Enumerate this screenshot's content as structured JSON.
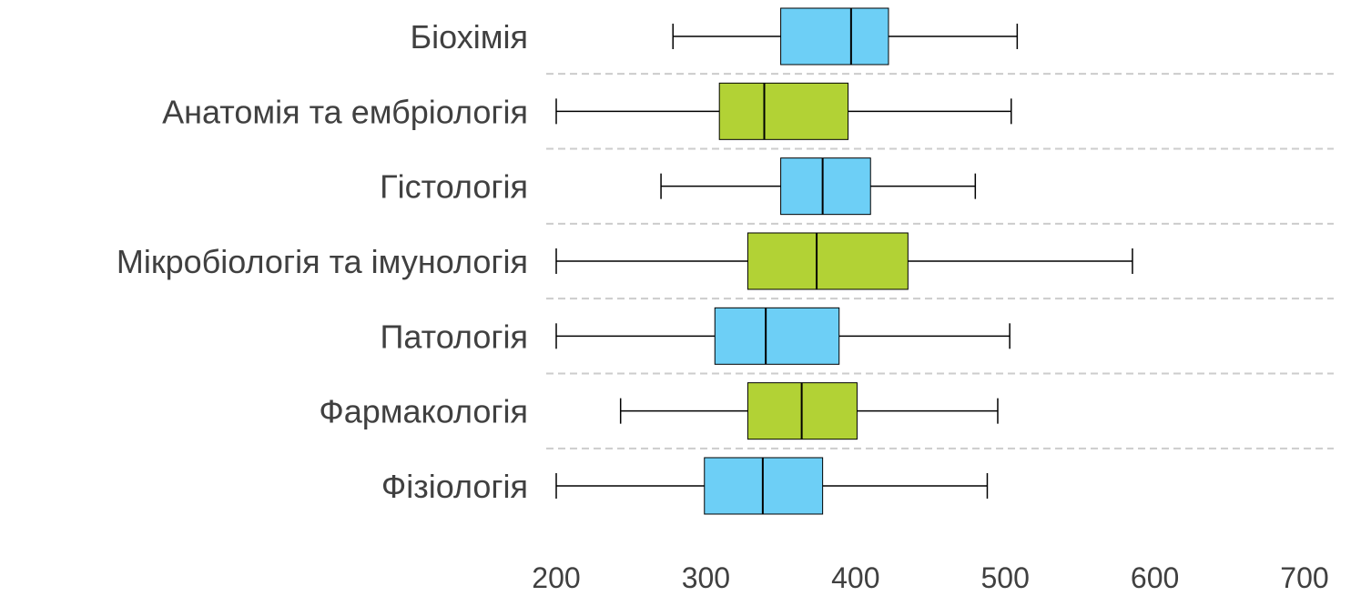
{
  "chart_data": {
    "type": "boxplot",
    "title": "",
    "xlabel": "",
    "ylabel": "",
    "xlim": [
      200,
      700
    ],
    "x_ticks": [
      200,
      300,
      400,
      500,
      600,
      700
    ],
    "grid": "dashed horizontal separators between categories",
    "colors": {
      "blue": "#6dcff6",
      "green": "#b2d235",
      "separator": "#cccccc",
      "text": "#404040"
    },
    "categories": [
      {
        "label": "Біохімія",
        "min": 278,
        "q1": 350,
        "median": 397,
        "q3": 422,
        "max": 508,
        "color": "blue"
      },
      {
        "label": "Анатомія та ембріологія",
        "min": 200,
        "q1": 309,
        "median": 339,
        "q3": 395,
        "max": 504,
        "color": "green"
      },
      {
        "label": "Гістологія",
        "min": 270,
        "q1": 350,
        "median": 378,
        "q3": 410,
        "max": 480,
        "color": "blue"
      },
      {
        "label": "Мікробіологія та імунологія",
        "min": 200,
        "q1": 328,
        "median": 374,
        "q3": 435,
        "max": 585,
        "color": "green"
      },
      {
        "label": "Патологія",
        "min": 200,
        "q1": 306,
        "median": 340,
        "q3": 389,
        "max": 503,
        "color": "blue"
      },
      {
        "label": "Фармакологія",
        "min": 243,
        "q1": 328,
        "median": 364,
        "q3": 401,
        "max": 495,
        "color": "green"
      },
      {
        "label": "Фізіологія",
        "min": 200,
        "q1": 299,
        "median": 338,
        "q3": 378,
        "max": 488,
        "color": "blue"
      }
    ]
  }
}
